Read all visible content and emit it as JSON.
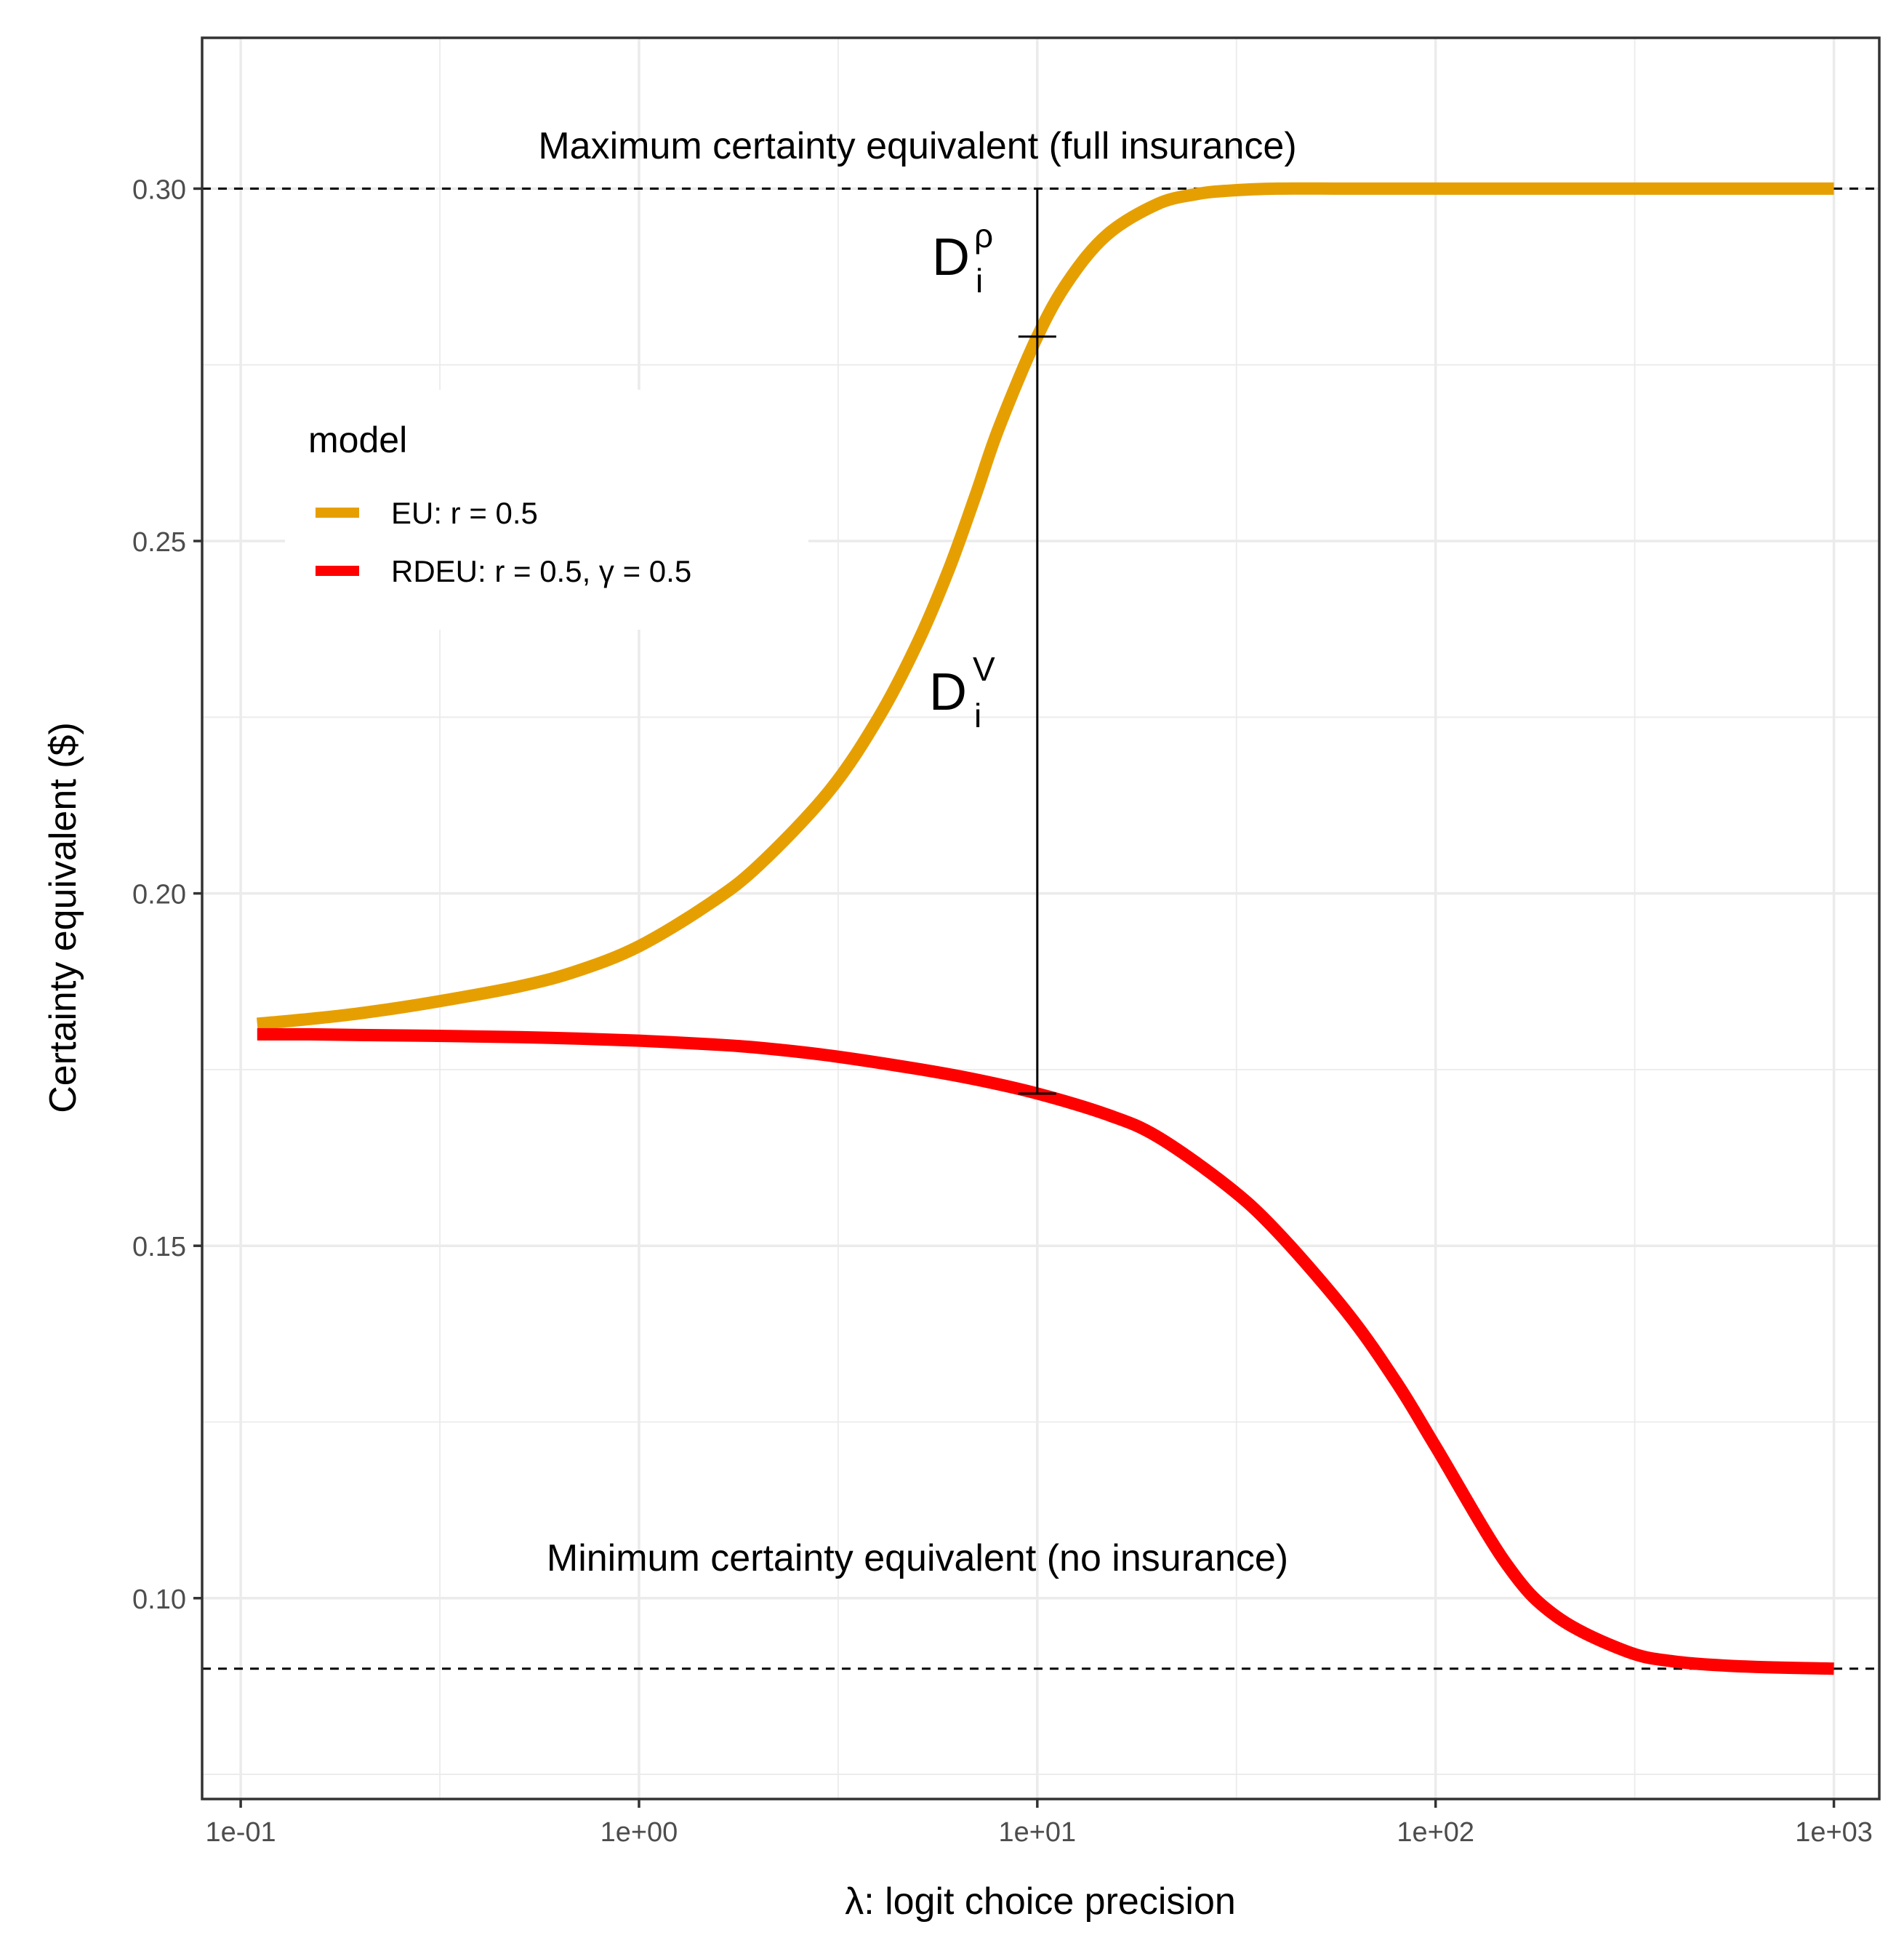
{
  "chart_data": {
    "type": "line",
    "xscale": "log10",
    "xlim": [
      0.08,
      1300
    ],
    "ylim": [
      0.0715,
      0.3214
    ],
    "xlabel": "λ: logit choice precision",
    "ylabel": "Certainty equivalent ($)",
    "x_ticks": [
      {
        "value": 0.1,
        "label": "1e-01"
      },
      {
        "value": 1,
        "label": "1e+00"
      },
      {
        "value": 10,
        "label": "1e+01"
      },
      {
        "value": 100,
        "label": "1e+02"
      },
      {
        "value": 1000,
        "label": "1e+03"
      }
    ],
    "y_ticks": [
      {
        "value": 0.1,
        "label": "0.10"
      },
      {
        "value": 0.15,
        "label": "0.15"
      },
      {
        "value": 0.2,
        "label": "0.20"
      },
      {
        "value": 0.25,
        "label": "0.25"
      },
      {
        "value": 0.3,
        "label": "0.30"
      }
    ],
    "y_minor_ticks": [
      0.075,
      0.125,
      0.175,
      0.225,
      0.275
    ],
    "grid": true,
    "legend": {
      "title": "model",
      "position": "top-left (inside)",
      "entries": [
        {
          "label": "EU: r = 0.5",
          "color": "#E69F00"
        },
        {
          "label": "RDEU: r = 0.5, γ = 0.5",
          "color": "#FF0000"
        }
      ]
    },
    "series": [
      {
        "name": "EU: r = 0.5",
        "color": "#E69F00",
        "x": [
          0.11,
          0.15,
          0.2,
          0.3,
          0.5,
          0.7,
          1,
          1.5,
          2,
          3,
          4,
          5,
          6,
          7,
          8,
          10,
          12,
          15,
          20,
          25,
          30,
          40,
          60,
          100,
          200,
          500,
          1000
        ],
        "y": [
          0.1815,
          0.1822,
          0.183,
          0.1845,
          0.1868,
          0.189,
          0.1925,
          0.1985,
          0.204,
          0.2145,
          0.225,
          0.2355,
          0.246,
          0.2565,
          0.266,
          0.279,
          0.287,
          0.2935,
          0.2978,
          0.2992,
          0.2997,
          0.3,
          0.3,
          0.3,
          0.3,
          0.3,
          0.3
        ]
      },
      {
        "name": "RDEU: r = 0.5, γ = 0.5",
        "color": "#FF0000",
        "x": [
          0.11,
          0.15,
          0.2,
          0.3,
          0.5,
          0.7,
          1,
          1.5,
          2,
          3,
          5,
          7,
          10,
          15,
          20,
          30,
          40,
          60,
          80,
          100,
          150,
          200,
          300,
          400,
          600,
          1000
        ],
        "y": [
          0.18,
          0.18,
          0.1799,
          0.1798,
          0.1796,
          0.1794,
          0.1791,
          0.1786,
          0.1781,
          0.177,
          0.1751,
          0.1736,
          0.1716,
          0.1686,
          0.1655,
          0.1585,
          0.152,
          0.1405,
          0.1305,
          0.1215,
          0.105,
          0.0975,
          0.0925,
          0.091,
          0.0903,
          0.09
        ]
      }
    ],
    "reference_lines": [
      {
        "y": 0.3,
        "style": "dashed",
        "label": "Maximum certainty equivalent (full insurance)"
      },
      {
        "y": 0.09,
        "style": "dashed",
        "label": "Minimum certainty equivalent (no insurance)"
      }
    ],
    "difference_segment": {
      "x": 10,
      "y_top": 0.3,
      "y_mid": 0.279,
      "y_bottom": 0.1716,
      "upper_label": {
        "base": "D",
        "sub": "i",
        "sup": "ρ"
      },
      "lower_label": {
        "base": "D",
        "sub": "i",
        "sup": "V"
      }
    }
  }
}
